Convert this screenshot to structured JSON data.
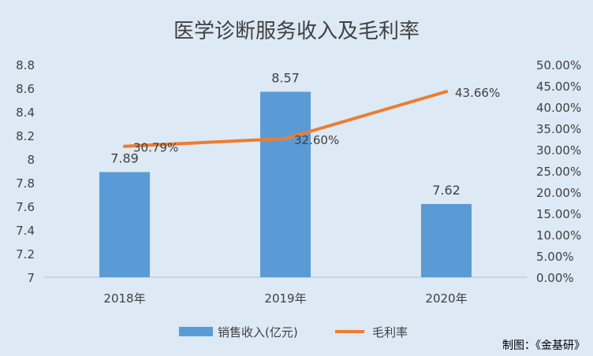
{
  "chart_data": {
    "type": "bar",
    "title": "医学诊断服务收入及毛利率",
    "categories": [
      "2018年",
      "2019年",
      "2020年"
    ],
    "series": [
      {
        "name": "销售收入(亿元)",
        "type": "bar",
        "axis": "left",
        "values": [
          7.89,
          8.57,
          7.62
        ],
        "labels": [
          "7.89",
          "8.57",
          "7.62"
        ],
        "color": "#5b9bd5"
      },
      {
        "name": "毛利率",
        "type": "line",
        "axis": "right",
        "values": [
          30.79,
          32.6,
          43.66
        ],
        "labels": [
          "30.79%",
          "32.60%",
          "43.66%"
        ],
        "color": "#ed7d31"
      }
    ],
    "y_left": {
      "min": 7,
      "max": 8.8,
      "step": 0.2,
      "ticks": [
        "7",
        "7.2",
        "7.4",
        "7.6",
        "7.8",
        "8",
        "8.2",
        "8.4",
        "8.6",
        "8.8"
      ]
    },
    "y_right": {
      "min": 0,
      "max": 50,
      "step": 5,
      "ticks": [
        "0.00%",
        "5.00%",
        "10.00%",
        "15.00%",
        "20.00%",
        "25.00%",
        "30.00%",
        "35.00%",
        "40.00%",
        "45.00%",
        "50.00%"
      ]
    },
    "grid": false,
    "legend": {
      "position": "bottom"
    },
    "source_note": "制图：《金基研》",
    "colors": {
      "background": "#dde9f5",
      "axis_text": "#404040",
      "title": "#404040"
    }
  }
}
